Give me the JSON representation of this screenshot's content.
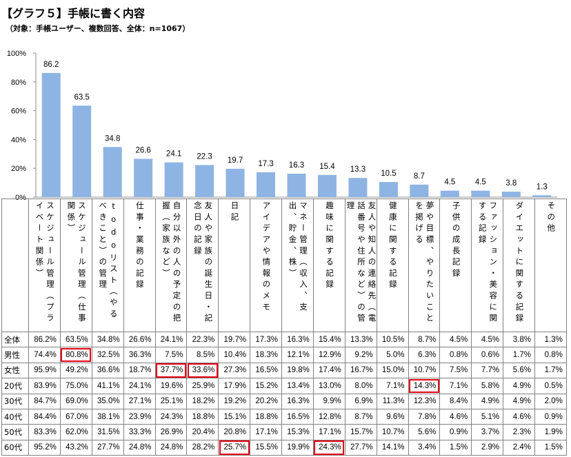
{
  "chart_data": {
    "type": "bar",
    "title": "【グラフ５】手帳に書く内容",
    "subtitle": "（対象：手帳ユーザー、複数回答、全体：n=1067）",
    "categories": [
      "スケジュール管理（プライベート関係）",
      "スケジュール管理（仕事関係）",
      "todoリスト（やるべきこと）の管理",
      "仕事・業務の記録",
      "自分以外の人の予定の把握（家族など）",
      "友人や家族の誕生日・記念日の記録",
      "日記",
      "アイデアや情報のメモ",
      "マネー管理（収入、支出、貯金、株）",
      "趣味に関する記録",
      "友人や知人の連絡先（電話番号や住所など）の管理",
      "健康に関する記録",
      "夢や目標、やりたいことを掲げる",
      "子供の成長記録",
      "ファッション・美容に関する記録",
      "ダイエットに関する記録",
      "その他"
    ],
    "values": [
      86.2,
      63.5,
      34.8,
      26.6,
      24.1,
      22.3,
      19.7,
      17.3,
      16.3,
      15.4,
      13.3,
      10.5,
      8.7,
      4.5,
      4.5,
      3.8,
      1.3
    ],
    "ylim": [
      0,
      100
    ],
    "yticks": [
      "0%",
      "20%",
      "40%",
      "60%",
      "80%",
      "100%"
    ],
    "grid": false,
    "bar_color": "#8eb4e3",
    "table": {
      "rows": [
        {
          "label": "全体",
          "values": [
            "86.2%",
            "63.5%",
            "34.8%",
            "26.6%",
            "24.1%",
            "22.3%",
            "19.7%",
            "17.3%",
            "16.3%",
            "15.4%",
            "13.3%",
            "10.5%",
            "8.7%",
            "4.5%",
            "4.5%",
            "3.8%",
            "1.3%"
          ]
        },
        {
          "label": "男性",
          "values": [
            "74.4%",
            "80.8%",
            "32.5%",
            "36.3%",
            "7.5%",
            "8.5%",
            "10.4%",
            "18.3%",
            "12.1%",
            "12.9%",
            "9.2%",
            "5.0%",
            "6.3%",
            "0.8%",
            "0.6%",
            "1.7%",
            "0.8%"
          ]
        },
        {
          "label": "女性",
          "values": [
            "95.9%",
            "49.2%",
            "36.6%",
            "18.7%",
            "37.7%",
            "33.6%",
            "27.3%",
            "16.5%",
            "19.8%",
            "17.4%",
            "16.7%",
            "15.0%",
            "10.7%",
            "7.5%",
            "7.7%",
            "5.6%",
            "1.7%"
          ]
        },
        {
          "label": "20代",
          "values": [
            "83.9%",
            "75.0%",
            "41.1%",
            "24.1%",
            "19.6%",
            "25.9%",
            "17.9%",
            "15.2%",
            "13.4%",
            "13.0%",
            "8.0%",
            "7.1%",
            "14.3%",
            "7.1%",
            "5.8%",
            "4.9%",
            "0.5%"
          ]
        },
        {
          "label": "30代",
          "values": [
            "84.7%",
            "69.0%",
            "35.0%",
            "27.1%",
            "25.1%",
            "18.2%",
            "19.2%",
            "20.2%",
            "16.3%",
            "9.9%",
            "6.9%",
            "11.3%",
            "12.3%",
            "8.4%",
            "4.9%",
            "4.9%",
            "2.0%"
          ]
        },
        {
          "label": "40代",
          "values": [
            "84.4%",
            "67.0%",
            "38.1%",
            "23.9%",
            "24.3%",
            "18.8%",
            "15.1%",
            "18.8%",
            "16.5%",
            "12.8%",
            "8.7%",
            "9.6%",
            "7.8%",
            "4.6%",
            "5.1%",
            "4.6%",
            "0.9%"
          ]
        },
        {
          "label": "50代",
          "values": [
            "83.3%",
            "62.0%",
            "31.5%",
            "33.3%",
            "26.9%",
            "20.4%",
            "20.8%",
            "17.1%",
            "15.3%",
            "17.1%",
            "15.7%",
            "10.7%",
            "5.6%",
            "0.9%",
            "3.7%",
            "2.3%",
            "1.9%"
          ]
        },
        {
          "label": "60代",
          "values": [
            "95.2%",
            "43.2%",
            "27.7%",
            "24.8%",
            "24.8%",
            "28.2%",
            "25.7%",
            "15.5%",
            "19.9%",
            "24.3%",
            "27.7%",
            "14.1%",
            "3.4%",
            "1.5%",
            "2.9%",
            "2.4%",
            "1.5%"
          ]
        }
      ],
      "highlight_color": "#e60012",
      "highlights": [
        {
          "row": 1,
          "col": 1
        },
        {
          "row": 2,
          "col": 4
        },
        {
          "row": 2,
          "col": 5
        },
        {
          "row": 3,
          "col": 12
        },
        {
          "row": 7,
          "col": 6
        },
        {
          "row": 7,
          "col": 9
        }
      ]
    }
  }
}
